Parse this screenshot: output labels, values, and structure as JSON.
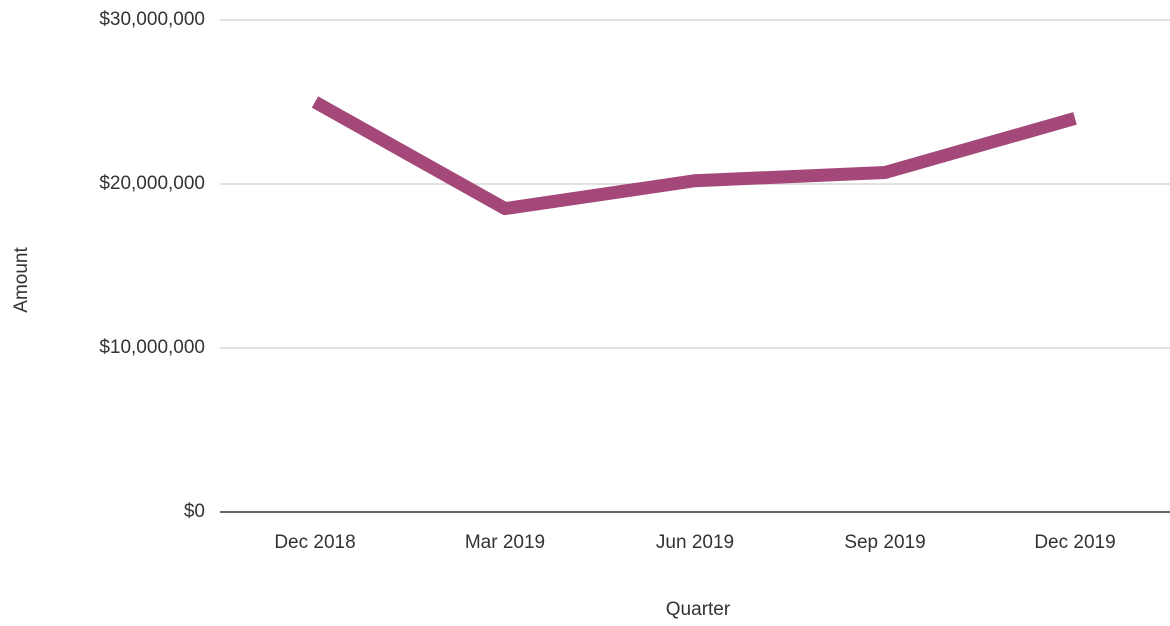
{
  "chart_data": {
    "type": "line",
    "x_label": "Quarter",
    "y_label": "Amount",
    "categories": [
      "Dec 2018",
      "Mar 2019",
      "Jun 2019",
      "Sep 2019",
      "Dec 2019"
    ],
    "series": [
      {
        "name": "Amount",
        "color": "#a4487a",
        "values": [
          25000000,
          18500000,
          20200000,
          20700000,
          24000000
        ]
      }
    ],
    "ylim": [
      0,
      30000000
    ],
    "yticks": [
      {
        "value": 0,
        "label": "$0"
      },
      {
        "value": 10000000,
        "label": "$10,000,000"
      },
      {
        "value": 20000000,
        "label": "$20,000,000"
      },
      {
        "value": 30000000,
        "label": "$30,000,000"
      }
    ],
    "grid": true
  }
}
